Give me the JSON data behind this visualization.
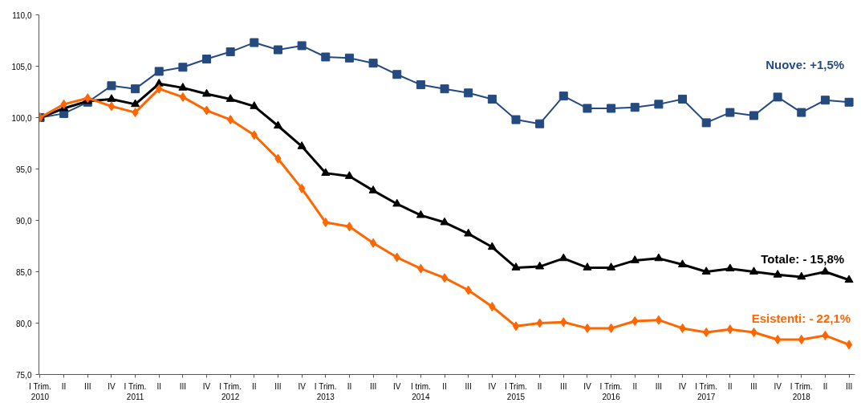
{
  "chart_data": {
    "type": "line",
    "categories": [
      "I Trim.\n2010",
      "II",
      "III",
      "IV",
      "I Trim.\n2011",
      "II",
      "III",
      "IV",
      "I Trim.\n2012",
      "II",
      "III",
      "IV",
      "I Trim.\n2013",
      "II",
      "III",
      "IV",
      "I trim.\n2014",
      "II",
      "III",
      "IV",
      "I Trim.\n2015",
      "II",
      "III",
      "IV",
      "I Trim.\n2016",
      "II",
      "III",
      "IV",
      "I Trim.\n2017",
      "II",
      "III",
      "IV",
      "I Trim.\n2018",
      "II",
      "III"
    ],
    "series": [
      {
        "name": "Nuove: +1,5%",
        "color": "#244a80",
        "marker": "square",
        "values": [
          100.0,
          100.4,
          101.5,
          103.1,
          102.8,
          104.5,
          104.9,
          105.7,
          106.4,
          107.3,
          106.6,
          107.0,
          105.9,
          105.8,
          105.3,
          104.2,
          103.2,
          102.8,
          102.4,
          101.8,
          99.8,
          99.4,
          102.1,
          100.9,
          100.9,
          101.0,
          101.3,
          101.8,
          99.5,
          100.5,
          100.2,
          102.0,
          100.5,
          101.7,
          101.5
        ]
      },
      {
        "name": "Totale: - 15,8%",
        "color": "#000000",
        "marker": "triangle",
        "values": [
          100.0,
          100.9,
          101.6,
          101.8,
          101.3,
          103.3,
          102.9,
          102.3,
          101.8,
          101.1,
          99.2,
          97.2,
          94.6,
          94.3,
          92.9,
          91.6,
          90.5,
          89.8,
          88.7,
          87.4,
          85.4,
          85.5,
          86.3,
          85.4,
          85.4,
          86.1,
          86.3,
          85.7,
          85.0,
          85.3,
          85.0,
          84.7,
          84.5,
          85.0,
          84.2
        ]
      },
      {
        "name": "Esistenti: - 22,1%",
        "color": "#ff6600",
        "marker": "diamond",
        "values": [
          100.0,
          101.3,
          101.9,
          101.1,
          100.5,
          102.8,
          102.0,
          100.7,
          99.8,
          98.3,
          96.0,
          93.1,
          89.8,
          89.4,
          87.8,
          86.4,
          85.3,
          84.4,
          83.2,
          81.6,
          79.7,
          80.0,
          80.1,
          79.5,
          79.5,
          80.2,
          80.3,
          79.5,
          79.1,
          79.4,
          79.1,
          78.4,
          78.4,
          78.8,
          77.9
        ]
      }
    ],
    "ylim": [
      75,
      110
    ],
    "yticks": [
      {
        "value": 75,
        "label": "75,0"
      },
      {
        "value": 80,
        "label": "80,0"
      },
      {
        "value": 85,
        "label": "85,0"
      },
      {
        "value": 90,
        "label": "90,0"
      },
      {
        "value": 95,
        "label": "95,0"
      },
      {
        "value": 100,
        "label": "100,0"
      },
      {
        "value": 105,
        "label": "105,0"
      },
      {
        "value": 110,
        "label": "110,0"
      }
    ],
    "grid": false,
    "line_style": "solid"
  }
}
